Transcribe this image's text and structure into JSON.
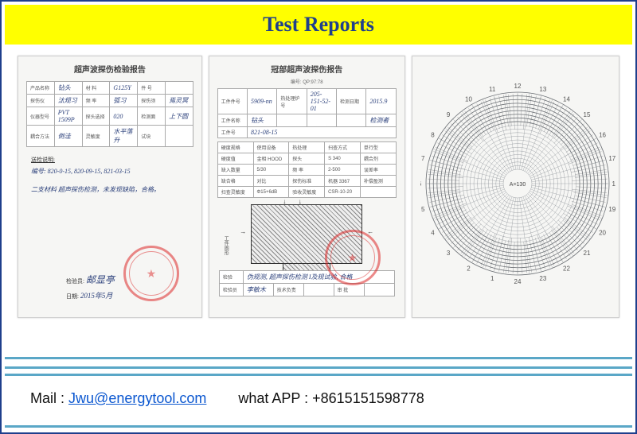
{
  "header": {
    "title": "Test Reports"
  },
  "documents": {
    "doc1": {
      "title": "超声波探伤检验报告",
      "rows": [
        [
          "产品名称",
          "钻头",
          "材 料",
          "G125Y",
          "件 号",
          ""
        ],
        [
          "探伤仪",
          "汰规习",
          "频 率",
          "弧习",
          "探伤须",
          "焉灵冥"
        ],
        [
          "仪器型号",
          "PVT 1509P",
          "探头选择",
          "020",
          "检测面",
          "上下圆"
        ],
        [
          "耦合方法",
          "倒洼",
          "灵敏度",
          "水平落升",
          "试块",
          ""
        ]
      ],
      "handnote_label": "送检说明:",
      "handnote_lines": [
        "编号: 820-0-15,  820-09-15,  821-03-15",
        "二支材料 超声探伤检测，未发现缺陷，合格。"
      ],
      "signature_label": "检验员:",
      "signature": "邮显亭",
      "date_label": "日期:",
      "date": "2015年5月"
    },
    "doc2": {
      "title": "冠部超声波探伤报告",
      "subtitle": "编号: QP:97:78",
      "header_rows": [
        [
          "工件件号",
          "5909-nn",
          "热处理炉号",
          "205-151-52-01",
          "检测日期",
          "2015.9"
        ],
        [
          "工件名称",
          "钻头",
          "",
          "",
          "",
          "检测者",
          "王火汉"
        ],
        [
          "工件号",
          "821-08-15",
          "",
          "",
          "",
          ""
        ]
      ],
      "spec_rows": [
        [
          "硬度规格",
          "使用设备",
          "热处理",
          "扫查方式",
          "单行型"
        ],
        [
          "硬度值",
          "金相 HOOD",
          "探头",
          "S 340",
          "耦合剂",
          "W-1"
        ],
        [
          "缺入数量",
          "5/30",
          "频 率",
          "2-500",
          "误差率",
          "6B"
        ],
        [
          "缺合格",
          "对比",
          "探伤标准",
          "机器 3367",
          "补偿盈测",
          "200%"
        ],
        [
          "扫查灵敏度",
          "Φ15+6dB",
          "验收灵敏度",
          "CSR-10-20",
          "",
          ""
        ]
      ],
      "diagram_label_left": "工件图形",
      "bottom_rows": [
        [
          "检验",
          "伪规测, 超声探伤检测 I及规试验, 合格"
        ],
        [
          "检验员",
          "李敏木",
          "技术负责",
          "",
          "审 批",
          ""
        ]
      ]
    },
    "doc3": {
      "type": "radial-hardness-chart",
      "ring_count": 22,
      "radial_lines": 48,
      "center_label": "A=130",
      "tick_numbers": [
        "12",
        "13",
        "14",
        "15",
        "16",
        "17",
        "18",
        "19",
        "20",
        "21",
        "22",
        "23",
        "24",
        "1",
        "2",
        "3",
        "4",
        "5",
        "6",
        "7",
        "8",
        "9",
        "10",
        "11"
      ],
      "line_color": "#8a8f95",
      "dense_color": "#6a6e73",
      "tick_fontsize": 8
    }
  },
  "contact": {
    "mail_label": "Mail :",
    "mail": "Jwu@energytool.com",
    "whatsapp_label": "what APP :",
    "whatsapp": "+8615151598778"
  },
  "colors": {
    "frame": "#1f3f8c",
    "banner_bg": "#ffff00",
    "divider": "#5aa7c7",
    "stamp": "rgba(220,40,40,0.55)"
  }
}
